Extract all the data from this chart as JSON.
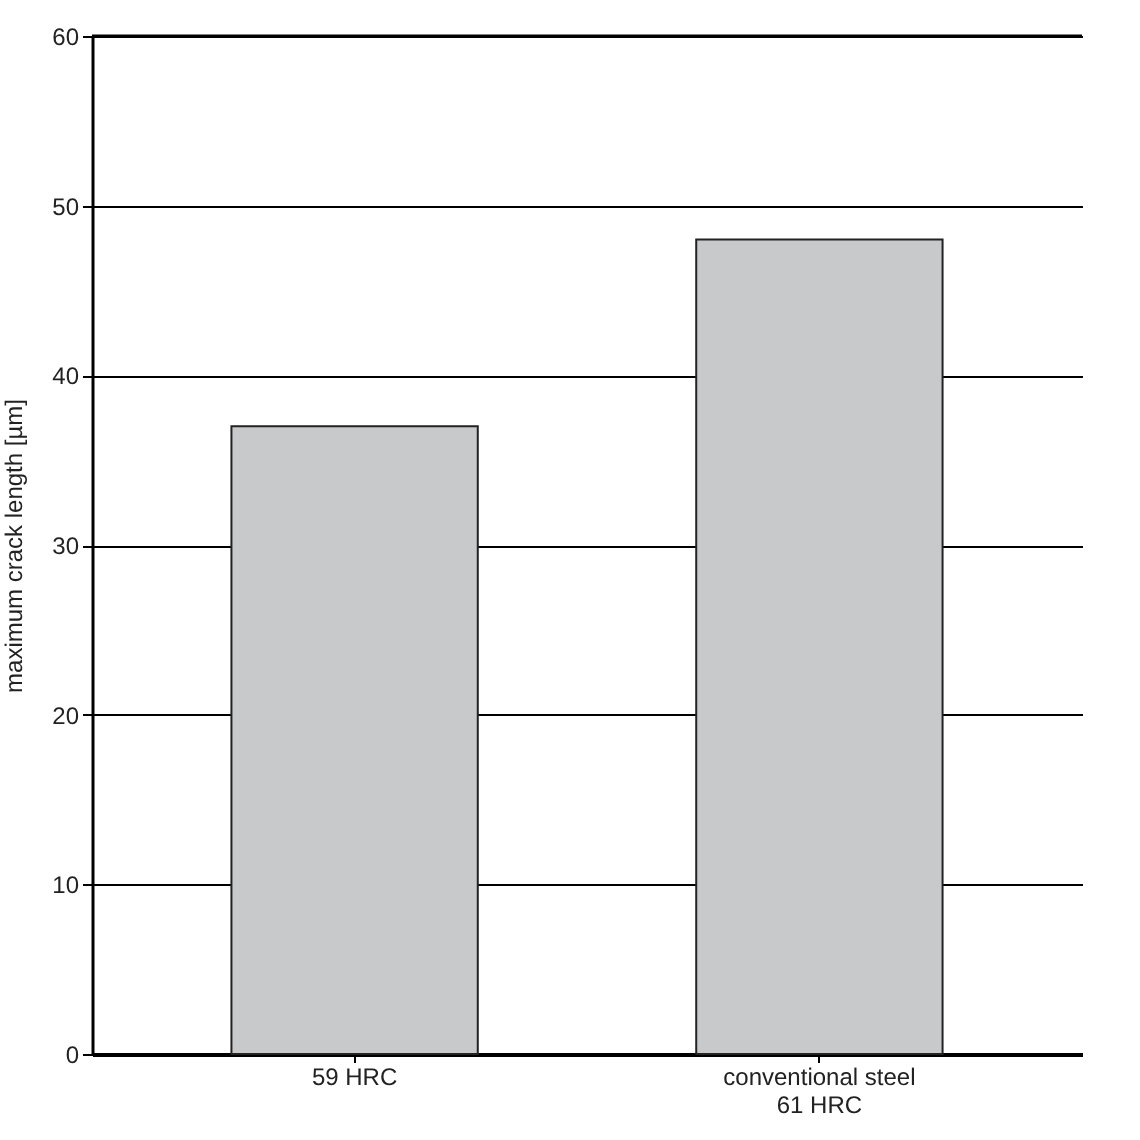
{
  "chart_data": {
    "type": "bar",
    "ylabel": "maximum crack length [µm]",
    "categories": [
      "59 HRC",
      "conventional steel\n61 HRC"
    ],
    "values": [
      37,
      48
    ],
    "color": "#c8c9cb",
    "ylim": [
      0,
      60
    ],
    "yticks": [
      0,
      10,
      20,
      30,
      40,
      50,
      60
    ],
    "grid": "y"
  }
}
